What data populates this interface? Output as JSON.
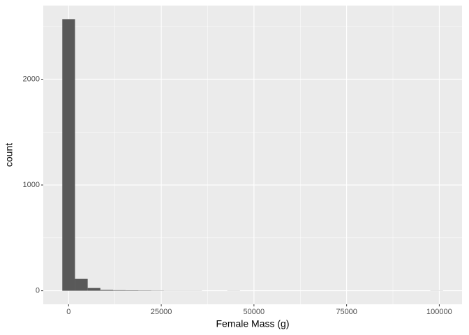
{
  "chart_data": {
    "type": "histogram",
    "x_label": "Female Mass (g)",
    "y_label": "count",
    "bins": [
      -1700,
      1724,
      5148,
      8572,
      11996,
      15420,
      18844,
      22268,
      25692,
      29116,
      32540,
      35964,
      39388,
      42812,
      46236,
      49660,
      53084,
      56508,
      59932,
      63356,
      66780,
      70204,
      73628,
      77052,
      80476,
      83900,
      87324,
      90748,
      94172,
      97596,
      101020
    ],
    "values": [
      2568,
      112,
      26,
      8,
      5,
      4,
      3,
      2,
      1,
      1,
      1,
      0,
      0,
      1,
      0,
      0,
      0,
      0,
      0,
      0,
      0,
      0,
      0,
      0,
      0,
      0,
      0,
      0,
      0,
      1
    ],
    "color": "#595959",
    "xlim": [
      -6835,
      106135
    ],
    "xticks": [
      0,
      25000,
      50000,
      75000,
      100000
    ],
    "xminor": [
      12500,
      37500,
      62500,
      87500
    ],
    "ylim": [
      -128,
      2696
    ],
    "yticks": [
      0,
      1000,
      2000
    ],
    "yminor": [
      500,
      1500,
      2500
    ],
    "grid": true
  }
}
